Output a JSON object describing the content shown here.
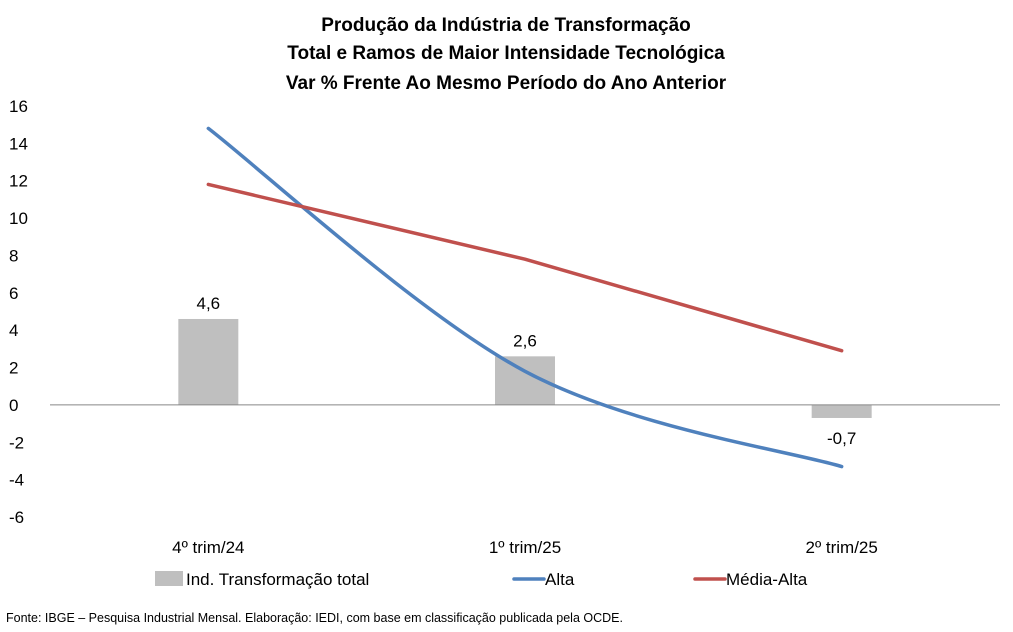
{
  "chart_data": {
    "type": "bar",
    "title_lines": [
      "Produção da Indústria de Transformação",
      "Total e Ramos de Maior Intensidade Tecnológica",
      "Var % Frente Ao Mesmo Período do Ano Anterior"
    ],
    "categories": [
      "4º trim/24",
      "1º trim/25",
      "2º trim/25"
    ],
    "ylim": [
      -6,
      16
    ],
    "yticks": [
      16,
      14,
      12,
      10,
      8,
      6,
      4,
      2,
      0,
      -2,
      -4,
      -6
    ],
    "series": [
      {
        "name": "Ind. Transformação total",
        "kind": "bar",
        "color": "#bfbfbf",
        "values": [
          4.6,
          2.6,
          -0.7
        ],
        "labels": [
          "4,6",
          "2,6",
          "-0,7"
        ]
      },
      {
        "name": "Alta",
        "kind": "line",
        "smooth": true,
        "color": "#4f81bd",
        "values": [
          14.8,
          1.8,
          -3.3
        ]
      },
      {
        "name": "Média-Alta",
        "kind": "line",
        "smooth": false,
        "color": "#c0504d",
        "values": [
          11.8,
          7.8,
          2.9
        ]
      }
    ]
  },
  "source": "Fonte: IBGE – Pesquisa Industrial Mensal. Elaboração: IEDI, com base em classificação publicada pela OCDE."
}
